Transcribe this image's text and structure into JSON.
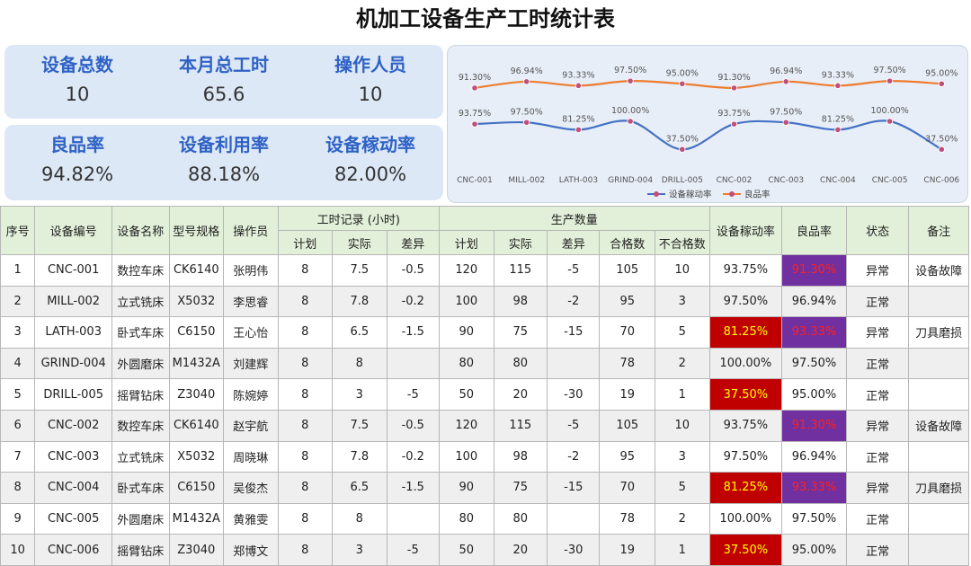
{
  "title": "机加工设备生产工时统计表",
  "kpis": {
    "total_devices": {
      "label": "设备总数",
      "value": "10"
    },
    "month_hours": {
      "label": "本月总工时",
      "value": "65.6"
    },
    "operators": {
      "label": "操作人员",
      "value": "10"
    },
    "yield_rate": {
      "label": "良品率",
      "value": "94.82%"
    },
    "utilization": {
      "label": "设备利用率",
      "value": "88.18%"
    },
    "mobility": {
      "label": "设备稼动率",
      "value": "82.00%"
    }
  },
  "chart_data": {
    "type": "line",
    "categories": [
      "CNC-001",
      "MILL-002",
      "LATH-003",
      "GRIND-004",
      "DRILL-005",
      "CNC-002",
      "CNC-003",
      "CNC-004",
      "CNC-005",
      "CNC-006"
    ],
    "series": [
      {
        "name": "设备稼动率",
        "values": [
          93.75,
          97.5,
          81.25,
          100.0,
          37.5,
          93.75,
          97.5,
          81.25,
          100.0,
          37.5
        ],
        "labels": [
          "93.75%",
          "97.50%",
          "81.25%",
          "100.00%",
          "37.50%",
          "93.75%",
          "97.50%",
          "81.25%",
          "100.00%",
          "37.50%"
        ],
        "color": "#4472c4"
      },
      {
        "name": "良品率",
        "values": [
          91.3,
          96.94,
          93.33,
          97.5,
          95.0,
          91.3,
          96.94,
          93.33,
          97.5,
          95.0
        ],
        "labels": [
          "91.30%",
          "96.94%",
          "93.33%",
          "97.50%",
          "95.00%",
          "91.30%",
          "96.94%",
          "93.33%",
          "97.50%",
          "95.00%"
        ],
        "color": "#ed7d31"
      }
    ],
    "legend": "bottom",
    "grid": false,
    "smooth": true
  },
  "table": {
    "headers": {
      "seq": "序号",
      "code": "设备编号",
      "name": "设备名称",
      "model": "型号规格",
      "operator": "操作员",
      "hours_group": "工时记录 (小时)",
      "prod_group": "生产数量",
      "plan": "计划",
      "actual": "实际",
      "diff": "差异",
      "p_plan": "计划",
      "p_actual": "实际",
      "p_diff": "差异",
      "good": "合格数",
      "bad": "不合格数",
      "mobility": "设备稼动率",
      "yield": "良品率",
      "status": "状态",
      "note": "备注"
    },
    "rows": [
      {
        "seq": "1",
        "code": "CNC-001",
        "name": "数控车床",
        "model": "CK6140",
        "operator": "张明伟",
        "h_plan": "8",
        "h_actual": "7.5",
        "h_diff": "-0.5",
        "p_plan": "120",
        "p_actual": "115",
        "p_diff": "-5",
        "good": "105",
        "bad": "10",
        "mobility": "93.75%",
        "yield": "91.30%",
        "status": "异常",
        "note": "设备故障",
        "mob_flag": "",
        "yield_flag": "purple"
      },
      {
        "seq": "2",
        "code": "MILL-002",
        "name": "立式铣床",
        "model": "X5032",
        "operator": "李思睿",
        "h_plan": "8",
        "h_actual": "7.8",
        "h_diff": "-0.2",
        "p_plan": "100",
        "p_actual": "98",
        "p_diff": "-2",
        "good": "95",
        "bad": "3",
        "mobility": "97.50%",
        "yield": "96.94%",
        "status": "正常",
        "note": "",
        "mob_flag": "",
        "yield_flag": ""
      },
      {
        "seq": "3",
        "code": "LATH-003",
        "name": "卧式车床",
        "model": "C6150",
        "operator": "王心怡",
        "h_plan": "8",
        "h_actual": "6.5",
        "h_diff": "-1.5",
        "p_plan": "90",
        "p_actual": "75",
        "p_diff": "-15",
        "good": "70",
        "bad": "5",
        "mobility": "81.25%",
        "yield": "93.33%",
        "status": "异常",
        "note": "刀具磨损",
        "mob_flag": "red",
        "yield_flag": "purple"
      },
      {
        "seq": "4",
        "code": "GRIND-004",
        "name": "外圆磨床",
        "model": "M1432A",
        "operator": "刘建辉",
        "h_plan": "8",
        "h_actual": "8",
        "h_diff": "",
        "p_plan": "80",
        "p_actual": "80",
        "p_diff": "",
        "good": "78",
        "bad": "2",
        "mobility": "100.00%",
        "yield": "97.50%",
        "status": "正常",
        "note": "",
        "mob_flag": "",
        "yield_flag": ""
      },
      {
        "seq": "5",
        "code": "DRILL-005",
        "name": "摇臂钻床",
        "model": "Z3040",
        "operator": "陈婉婷",
        "h_plan": "8",
        "h_actual": "3",
        "h_diff": "-5",
        "p_plan": "50",
        "p_actual": "20",
        "p_diff": "-30",
        "good": "19",
        "bad": "1",
        "mobility": "37.50%",
        "yield": "95.00%",
        "status": "正常",
        "note": "",
        "mob_flag": "red",
        "yield_flag": ""
      },
      {
        "seq": "6",
        "code": "CNC-002",
        "name": "数控车床",
        "model": "CK6140",
        "operator": "赵宇航",
        "h_plan": "8",
        "h_actual": "7.5",
        "h_diff": "-0.5",
        "p_plan": "120",
        "p_actual": "115",
        "p_diff": "-5",
        "good": "105",
        "bad": "10",
        "mobility": "93.75%",
        "yield": "91.30%",
        "status": "异常",
        "note": "设备故障",
        "mob_flag": "",
        "yield_flag": "purple"
      },
      {
        "seq": "7",
        "code": "CNC-003",
        "name": "立式铣床",
        "model": "X5032",
        "operator": "周晓琳",
        "h_plan": "8",
        "h_actual": "7.8",
        "h_diff": "-0.2",
        "p_plan": "100",
        "p_actual": "98",
        "p_diff": "-2",
        "good": "95",
        "bad": "3",
        "mobility": "97.50%",
        "yield": "96.94%",
        "status": "正常",
        "note": "",
        "mob_flag": "",
        "yield_flag": ""
      },
      {
        "seq": "8",
        "code": "CNC-004",
        "name": "卧式车床",
        "model": "C6150",
        "operator": "吴俊杰",
        "h_plan": "8",
        "h_actual": "6.5",
        "h_diff": "-1.5",
        "p_plan": "90",
        "p_actual": "75",
        "p_diff": "-15",
        "good": "70",
        "bad": "5",
        "mobility": "81.25%",
        "yield": "93.33%",
        "status": "异常",
        "note": "刀具磨损",
        "mob_flag": "red",
        "yield_flag": "purple"
      },
      {
        "seq": "9",
        "code": "CNC-005",
        "name": "外圆磨床",
        "model": "M1432A",
        "operator": "黄雅雯",
        "h_plan": "8",
        "h_actual": "8",
        "h_diff": "",
        "p_plan": "80",
        "p_actual": "80",
        "p_diff": "",
        "good": "78",
        "bad": "2",
        "mobility": "100.00%",
        "yield": "97.50%",
        "status": "正常",
        "note": "",
        "mob_flag": "",
        "yield_flag": ""
      },
      {
        "seq": "10",
        "code": "CNC-006",
        "name": "摇臂钻床",
        "model": "Z3040",
        "operator": "郑博文",
        "h_plan": "8",
        "h_actual": "3",
        "h_diff": "-5",
        "p_plan": "50",
        "p_actual": "20",
        "p_diff": "-30",
        "good": "19",
        "bad": "1",
        "mobility": "37.50%",
        "yield": "95.00%",
        "status": "正常",
        "note": "",
        "mob_flag": "red",
        "yield_flag": ""
      }
    ]
  }
}
